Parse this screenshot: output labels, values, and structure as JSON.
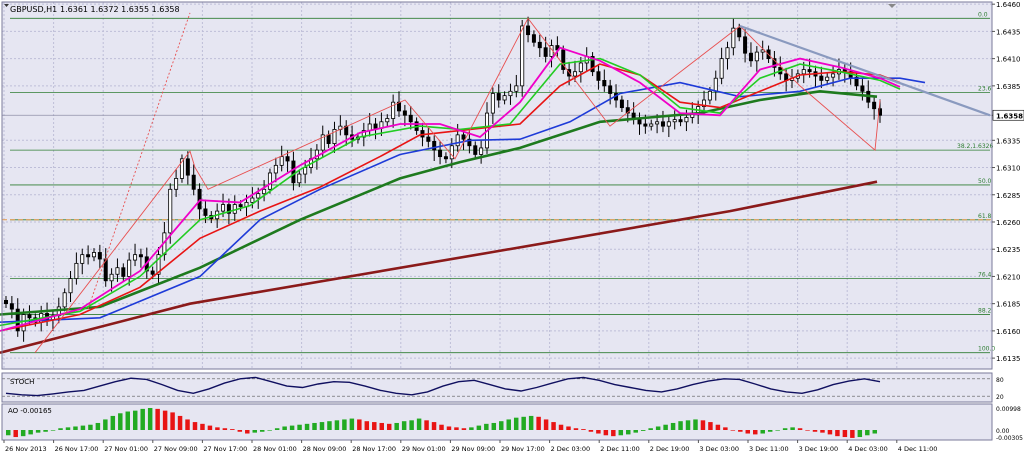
{
  "header": {
    "symbol_label": "GBPUSD,H1",
    "ohlc_label": "1.6361 1.6372 1.6355 1.6358"
  },
  "colors": {
    "panel_bg": "#E6E6F2",
    "grid": "#BEBED8",
    "candle_body": "#000000",
    "fib_line": "#2E7D32",
    "fib_dashed": "#E69A4A",
    "ma_slowest": "#8B1A1A",
    "ma_slow": "#1E7A1E",
    "ma_mid": "#1E3BD8",
    "ma_fast_red": "#E81414",
    "ma_fast_green": "#22CC22",
    "ma_fastest_magenta": "#F000C8",
    "zigzag": "#E85050",
    "trendline": "#8A9ABF",
    "stoch_line": "#101060",
    "ao_up": "#22AA22",
    "ao_down": "#E81414"
  },
  "chart_data": [
    {
      "type": "candlestick",
      "title": "GBPUSD,H1",
      "ohlc_readout": "1.6361 1.6372 1.6355 1.6358",
      "ylim": [
        1.6125,
        1.6462
      ],
      "y_ticks": [
        "1.6460",
        "1.6435",
        "1.6410",
        "1.6385",
        "1.6358",
        "1.6335",
        "1.6310",
        "1.6285",
        "1.6260",
        "1.6235",
        "1.6210",
        "1.6185",
        "1.6160",
        "1.6135"
      ],
      "current_price": "1.6358",
      "fib_levels": [
        {
          "label": "0.0",
          "price": 1.6447
        },
        {
          "label": "23.6",
          "price": 1.6379
        },
        {
          "label": "38.2",
          "extra": "1.6326",
          "price": 1.6326
        },
        {
          "label": "50.0",
          "price": 1.6294
        },
        {
          "label": "61.8",
          "price": 1.6262
        },
        {
          "label": "76.4",
          "price": 1.6208
        },
        {
          "label": "88.2",
          "price": 1.6175
        },
        {
          "label": "100.0",
          "price": 1.614
        }
      ],
      "x_labels": [
        "26 Nov 2013",
        "26 Nov 17:00",
        "27 Nov 01:00",
        "27 Nov 09:00",
        "27 Nov 17:00",
        "28 Nov 01:00",
        "28 Nov 09:00",
        "28 Nov 17:00",
        "29 Nov 01:00",
        "29 Nov 09:00",
        "29 Nov 17:00",
        "2 Dec 03:00",
        "2 Dec 11:00",
        "2 Dec 19:00",
        "3 Dec 03:00",
        "3 Dec 11:00",
        "3 Dec 19:00",
        "4 Dec 03:00",
        "4 Dec 11:00"
      ],
      "close_path": [
        1.6185,
        1.618,
        1.616,
        1.6175,
        1.6172,
        1.6168,
        1.6176,
        1.617,
        1.6174,
        1.6182,
        1.6195,
        1.6208,
        1.6222,
        1.623,
        1.6228,
        1.6232,
        1.6226,
        1.6206,
        1.6212,
        1.6218,
        1.621,
        1.6225,
        1.623,
        1.6228,
        1.6215,
        1.6212,
        1.623,
        1.625,
        1.629,
        1.63,
        1.6318,
        1.6303,
        1.629,
        1.6272,
        1.6266,
        1.6263,
        1.627,
        1.6276,
        1.6268,
        1.6276,
        1.6274,
        1.6278,
        1.6282,
        1.6286,
        1.629,
        1.6305,
        1.6312,
        1.632,
        1.6316,
        1.6296,
        1.6304,
        1.631,
        1.6318,
        1.6326,
        1.634,
        1.6332,
        1.6345,
        1.6348,
        1.634,
        1.6336,
        1.6338,
        1.6344,
        1.635,
        1.6346,
        1.6352,
        1.6355,
        1.637,
        1.6362,
        1.6358,
        1.6352,
        1.6344,
        1.6338,
        1.6334,
        1.6326,
        1.632,
        1.6318,
        1.633,
        1.634,
        1.6336,
        1.633,
        1.6322,
        1.6328,
        1.636,
        1.6378,
        1.6372,
        1.6376,
        1.638,
        1.6385,
        1.644,
        1.6432,
        1.6425,
        1.642,
        1.6412,
        1.6422,
        1.6418,
        1.64,
        1.6394,
        1.6398,
        1.6406,
        1.6412,
        1.6398,
        1.639,
        1.6385,
        1.6378,
        1.6372,
        1.6365,
        1.636,
        1.6355,
        1.635,
        1.6348,
        1.635,
        1.6352,
        1.6348,
        1.6352,
        1.6354,
        1.6352,
        1.6356,
        1.636,
        1.6366,
        1.6372,
        1.638,
        1.6392,
        1.641,
        1.642,
        1.6438,
        1.643,
        1.6415,
        1.6408,
        1.6416,
        1.6418,
        1.641,
        1.6402,
        1.6396,
        1.639,
        1.6392,
        1.6396,
        1.64,
        1.6398,
        1.6394,
        1.639,
        1.6393,
        1.6396,
        1.64,
        1.6398,
        1.6393,
        1.6385,
        1.638,
        1.637,
        1.6364,
        1.6358
      ],
      "ma_slowest": [
        [
          0,
          1.614
        ],
        [
          190,
          1.6185
        ],
        [
          490,
          1.6232
        ],
        [
          730,
          1.627
        ],
        [
          877,
          1.6297
        ]
      ],
      "ma_slow": [
        [
          0,
          1.6175
        ],
        [
          100,
          1.6182
        ],
        [
          200,
          1.6218
        ],
        [
          300,
          1.6262
        ],
        [
          400,
          1.63
        ],
        [
          460,
          1.6315
        ],
        [
          520,
          1.6328
        ],
        [
          600,
          1.6352
        ],
        [
          700,
          1.636
        ],
        [
          760,
          1.6372
        ],
        [
          820,
          1.638
        ],
        [
          877,
          1.6375
        ]
      ],
      "ma_mid": [
        [
          0,
          1.6168
        ],
        [
          100,
          1.6172
        ],
        [
          200,
          1.621
        ],
        [
          260,
          1.6262
        ],
        [
          320,
          1.629
        ],
        [
          400,
          1.6322
        ],
        [
          470,
          1.6335
        ],
        [
          520,
          1.6336
        ],
        [
          570,
          1.6352
        ],
        [
          620,
          1.6378
        ],
        [
          680,
          1.6388
        ],
        [
          740,
          1.6375
        ],
        [
          800,
          1.638
        ],
        [
          850,
          1.6392
        ],
        [
          900,
          1.6392
        ],
        [
          925,
          1.6388
        ]
      ],
      "ma_fast_red": [
        [
          0,
          1.616
        ],
        [
          80,
          1.6175
        ],
        [
          140,
          1.62
        ],
        [
          200,
          1.6245
        ],
        [
          260,
          1.627
        ],
        [
          320,
          1.6292
        ],
        [
          380,
          1.632
        ],
        [
          420,
          1.634
        ],
        [
          470,
          1.6345
        ],
        [
          520,
          1.635
        ],
        [
          560,
          1.6385
        ],
        [
          600,
          1.6405
        ],
        [
          640,
          1.6395
        ],
        [
          680,
          1.637
        ],
        [
          720,
          1.6365
        ],
        [
          760,
          1.638
        ],
        [
          800,
          1.6395
        ],
        [
          840,
          1.6398
        ],
        [
          880,
          1.6395
        ],
        [
          900,
          1.6388
        ]
      ],
      "ma_fast_green": [
        [
          0,
          1.6165
        ],
        [
          80,
          1.6178
        ],
        [
          140,
          1.621
        ],
        [
          200,
          1.6262
        ],
        [
          250,
          1.6275
        ],
        [
          300,
          1.6308
        ],
        [
          360,
          1.6338
        ],
        [
          420,
          1.6348
        ],
        [
          460,
          1.6345
        ],
        [
          510,
          1.635
        ],
        [
          560,
          1.6405
        ],
        [
          600,
          1.641
        ],
        [
          640,
          1.6395
        ],
        [
          680,
          1.6365
        ],
        [
          720,
          1.636
        ],
        [
          760,
          1.6392
        ],
        [
          800,
          1.6405
        ],
        [
          840,
          1.6398
        ],
        [
          880,
          1.639
        ],
        [
          900,
          1.6382
        ]
      ],
      "ma_fastest_magenta": [
        [
          0,
          1.616
        ],
        [
          80,
          1.618
        ],
        [
          140,
          1.6215
        ],
        [
          200,
          1.628
        ],
        [
          240,
          1.6278
        ],
        [
          300,
          1.6312
        ],
        [
          360,
          1.6342
        ],
        [
          400,
          1.635
        ],
        [
          440,
          1.635
        ],
        [
          480,
          1.6338
        ],
        [
          520,
          1.637
        ],
        [
          560,
          1.642
        ],
        [
          600,
          1.6408
        ],
        [
          640,
          1.6388
        ],
        [
          680,
          1.636
        ],
        [
          720,
          1.6358
        ],
        [
          760,
          1.64
        ],
        [
          800,
          1.641
        ],
        [
          840,
          1.6402
        ],
        [
          880,
          1.6392
        ],
        [
          900,
          1.6384
        ]
      ],
      "zigzag": [
        [
          35,
          1.614
        ],
        [
          190,
          1.6325
        ],
        [
          195,
          1.631
        ],
        [
          208,
          1.629
        ],
        [
          405,
          1.6372
        ],
        [
          455,
          1.6318
        ],
        [
          528,
          1.6447
        ],
        [
          610,
          1.6348
        ],
        [
          740,
          1.644
        ],
        [
          800,
          1.6385
        ],
        [
          875,
          1.6326
        ],
        [
          880,
          1.6372
        ]
      ],
      "dotted_ray": [
        [
          88,
          1.618
        ],
        [
          190,
          1.6452
        ]
      ],
      "trendline": [
        [
          740,
          1.644
        ],
        [
          990,
          1.6358
        ]
      ],
      "current_price_line": 1.6358,
      "dashed_level": 1.6262
    },
    {
      "type": "line",
      "title": "STOCH",
      "ylim": [
        0,
        100
      ],
      "y_ticks": [
        "80",
        "20"
      ],
      "values_label": "",
      "series_shape": [
        30,
        25,
        22,
        28,
        35,
        40,
        55,
        70,
        82,
        78,
        60,
        40,
        30,
        45,
        65,
        80,
        85,
        70,
        55,
        50,
        62,
        70,
        68,
        55,
        40,
        30,
        25,
        35,
        55,
        70,
        75,
        60,
        45,
        38,
        50,
        65,
        80,
        85,
        75,
        60,
        50,
        40,
        35,
        45,
        60,
        72,
        80,
        78,
        62,
        45,
        35,
        30,
        42,
        60,
        72,
        80,
        70
      ]
    },
    {
      "type": "bar",
      "title": "AO",
      "value_label": "AO -0.00165",
      "y_ticks": [
        "0.00998",
        "0.00",
        "-0.00305"
      ],
      "values": [
        -0.6,
        -0.8,
        -0.7,
        -0.5,
        -0.3,
        -0.2,
        0.0,
        0.2,
        0.3,
        0.4,
        0.5,
        0.6,
        0.8,
        1.2,
        1.6,
        1.9,
        2.1,
        2.2,
        2.4,
        2.5,
        2.4,
        2.2,
        2.0,
        1.6,
        1.2,
        0.9,
        0.7,
        0.5,
        0.3,
        0.2,
        0.1,
        -0.2,
        -0.4,
        -0.3,
        -0.2,
        0.0,
        0.2,
        0.4,
        0.5,
        0.6,
        0.7,
        0.8,
        0.9,
        1.0,
        1.1,
        1.2,
        1.3,
        1.2,
        1.0,
        0.9,
        0.8,
        0.7,
        0.8,
        1.0,
        1.1,
        1.3,
        1.1,
        0.9,
        0.6,
        0.4,
        0.3,
        0.2,
        0.3,
        0.5,
        0.7,
        0.8,
        1.0,
        1.2,
        1.4,
        1.5,
        1.6,
        1.5,
        1.2,
        0.9,
        0.6,
        0.4,
        0.2,
        0.1,
        -0.2,
        -0.4,
        -0.6,
        -0.7,
        -0.6,
        -0.5,
        -0.3,
        -0.1,
        0.2,
        0.4,
        0.6,
        0.8,
        1.0,
        1.1,
        1.2,
        1.1,
        0.9,
        0.6,
        0.3,
        0.0,
        -0.2,
        -0.4,
        -0.5,
        -0.4,
        -0.2,
        0.0,
        0.2,
        0.3,
        0.2,
        0.0,
        -0.2,
        -0.3,
        -0.5,
        -0.7,
        -0.8,
        -0.9,
        -0.8,
        -0.6,
        -0.4
      ]
    }
  ]
}
